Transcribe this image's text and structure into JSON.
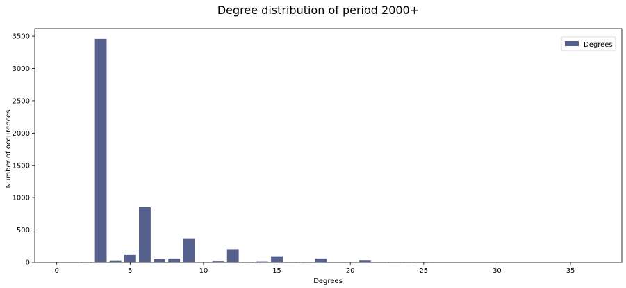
{
  "chart_data": {
    "type": "bar",
    "title": "Degree distribution of period 2000+",
    "xlabel": "Degrees",
    "ylabel": "Number of occurences",
    "xlim": [
      -1.5,
      38.5
    ],
    "ylim": [
      0,
      3620
    ],
    "xticks": [
      0,
      5,
      10,
      15,
      20,
      25,
      30,
      35
    ],
    "yticks": [
      0,
      500,
      1000,
      1500,
      2000,
      2500,
      3000,
      3500
    ],
    "grid": false,
    "legend_position": "top-right",
    "bar_color": "#55618c",
    "series": [
      {
        "name": "Degrees",
        "x": [
          2,
          3,
          4,
          5,
          6,
          7,
          8,
          9,
          10,
          11,
          12,
          13,
          14,
          15,
          16,
          17,
          18,
          20,
          21,
          23,
          24,
          26
        ],
        "values": [
          10,
          3460,
          25,
          120,
          855,
          45,
          55,
          370,
          10,
          20,
          200,
          10,
          15,
          90,
          8,
          10,
          55,
          10,
          30,
          8,
          8,
          5
        ]
      }
    ]
  }
}
